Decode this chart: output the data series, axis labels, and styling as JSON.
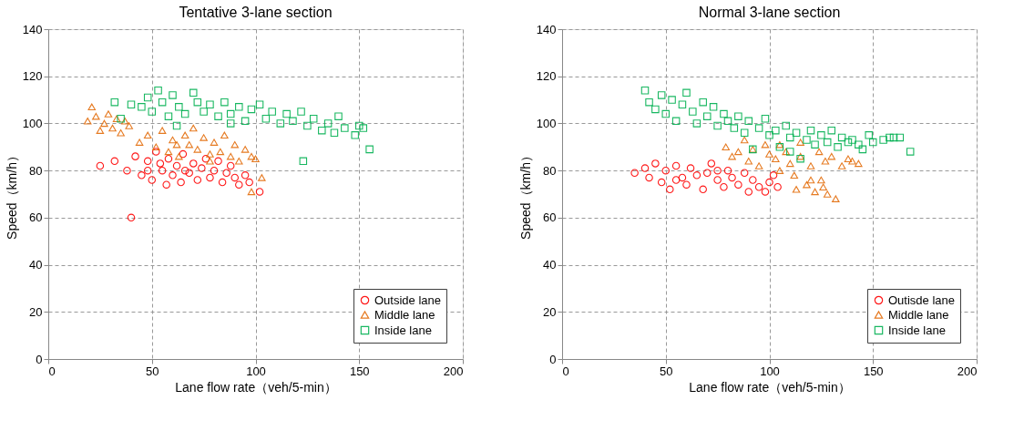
{
  "chart_data": [
    {
      "type": "scatter",
      "title": "Tentative 3-lane section",
      "xlabel": "Lane flow rate（veh/5-min）",
      "ylabel": "Speed（km/h）",
      "xlim": [
        0,
        200
      ],
      "xticks": [
        0,
        50,
        100,
        150,
        200
      ],
      "ylim": [
        0,
        140
      ],
      "yticks": [
        0,
        20,
        40,
        60,
        80,
        100,
        120,
        140
      ],
      "grid": true,
      "legend": "bottom right",
      "series": [
        {
          "name": "Outside lane",
          "color": "#ff0000",
          "marker": "circle",
          "x": [
            25,
            32,
            40,
            38,
            42,
            45,
            48,
            50,
            52,
            55,
            57,
            58,
            60,
            62,
            64,
            65,
            68,
            70,
            72,
            74,
            76,
            78,
            80,
            82,
            84,
            86,
            88,
            90,
            92,
            95,
            97,
            102,
            54,
            66,
            48
          ],
          "values": [
            82,
            84,
            60,
            80,
            86,
            78,
            84,
            76,
            88,
            80,
            74,
            85,
            78,
            82,
            75,
            87,
            79,
            83,
            76,
            81,
            85,
            77,
            80,
            84,
            75,
            79,
            82,
            77,
            74,
            78,
            75,
            71,
            83,
            80,
            80
          ]
        },
        {
          "name": "Middle lane",
          "color": "#e36c0a",
          "marker": "triangle",
          "x": [
            19,
            21,
            23,
            25,
            27,
            29,
            31,
            33,
            35,
            37,
            39,
            44,
            48,
            52,
            55,
            58,
            60,
            63,
            66,
            68,
            70,
            72,
            75,
            78,
            80,
            83,
            85,
            88,
            90,
            92,
            95,
            98,
            100,
            103,
            98,
            78,
            62
          ],
          "values": [
            101,
            107,
            103,
            97,
            100,
            104,
            98,
            102,
            96,
            101,
            99,
            92,
            95,
            90,
            97,
            88,
            93,
            86,
            95,
            91,
            98,
            89,
            94,
            87,
            92,
            88,
            95,
            86,
            91,
            84,
            89,
            86,
            85,
            77,
            71,
            84,
            91
          ]
        },
        {
          "name": "Inside lane",
          "color": "#00b050",
          "marker": "square",
          "x": [
            32,
            40,
            45,
            48,
            50,
            53,
            55,
            58,
            60,
            63,
            66,
            70,
            72,
            75,
            78,
            82,
            85,
            88,
            92,
            95,
            98,
            102,
            105,
            108,
            112,
            115,
            118,
            122,
            125,
            128,
            132,
            135,
            138,
            140,
            143,
            148,
            150,
            152,
            123,
            155,
            35,
            88,
            62
          ],
          "values": [
            109,
            108,
            107,
            111,
            105,
            114,
            109,
            103,
            112,
            107,
            104,
            113,
            109,
            105,
            108,
            103,
            109,
            104,
            107,
            101,
            106,
            108,
            102,
            105,
            100,
            104,
            101,
            105,
            99,
            102,
            97,
            100,
            96,
            103,
            98,
            95,
            99,
            98,
            84,
            89,
            102,
            100,
            99
          ]
        }
      ]
    },
    {
      "type": "scatter",
      "title": "Normal 3-lane section",
      "xlabel": "Lane flow rate（veh/5-min）",
      "ylabel": "Speed（km/h）",
      "xlim": [
        0,
        200
      ],
      "xticks": [
        0,
        50,
        100,
        150,
        200
      ],
      "ylim": [
        0,
        140
      ],
      "yticks": [
        0,
        20,
        40,
        60,
        80,
        100,
        120,
        140
      ],
      "grid": true,
      "legend": "bottom right",
      "series": [
        {
          "name": "Outisde lane",
          "color": "#ff0000",
          "marker": "circle",
          "x": [
            35,
            40,
            42,
            45,
            48,
            50,
            52,
            55,
            58,
            60,
            62,
            65,
            68,
            70,
            72,
            75,
            78,
            80,
            82,
            85,
            88,
            90,
            92,
            95,
            98,
            100,
            102,
            104,
            55,
            75
          ],
          "values": [
            79,
            81,
            77,
            83,
            75,
            80,
            72,
            82,
            77,
            74,
            81,
            78,
            72,
            79,
            83,
            76,
            73,
            80,
            77,
            74,
            79,
            71,
            76,
            73,
            71,
            75,
            78,
            73,
            76,
            80
          ]
        },
        {
          "name": "Middle lane",
          "color": "#e36c0a",
          "marker": "triangle",
          "x": [
            79,
            82,
            85,
            88,
            90,
            92,
            95,
            98,
            100,
            103,
            105,
            108,
            110,
            112,
            113,
            115,
            118,
            120,
            122,
            124,
            125,
            127,
            128,
            130,
            132,
            135,
            138,
            140,
            143,
            105,
            115,
            120,
            126
          ],
          "values": [
            90,
            86,
            88,
            93,
            84,
            89,
            82,
            91,
            87,
            85,
            80,
            88,
            83,
            78,
            72,
            86,
            74,
            82,
            71,
            88,
            76,
            84,
            70,
            86,
            68,
            82,
            85,
            84,
            83,
            91,
            92,
            76,
            73
          ]
        },
        {
          "name": "Inside lane",
          "color": "#00b050",
          "marker": "square",
          "x": [
            40,
            42,
            45,
            48,
            50,
            53,
            55,
            58,
            60,
            63,
            65,
            68,
            70,
            73,
            75,
            78,
            80,
            83,
            85,
            88,
            90,
            92,
            95,
            98,
            100,
            103,
            105,
            108,
            110,
            113,
            115,
            118,
            120,
            122,
            125,
            128,
            130,
            133,
            135,
            138,
            140,
            143,
            145,
            148,
            150,
            155,
            158,
            160,
            163,
            168,
            110
          ],
          "values": [
            114,
            109,
            106,
            112,
            104,
            110,
            101,
            108,
            113,
            105,
            100,
            109,
            103,
            107,
            99,
            104,
            101,
            98,
            103,
            96,
            101,
            89,
            98,
            102,
            95,
            97,
            90,
            99,
            94,
            96,
            85,
            93,
            97,
            91,
            95,
            92,
            97,
            90,
            94,
            92,
            93,
            91,
            89,
            95,
            92,
            93,
            94,
            94,
            94,
            88,
            88
          ]
        }
      ]
    }
  ]
}
